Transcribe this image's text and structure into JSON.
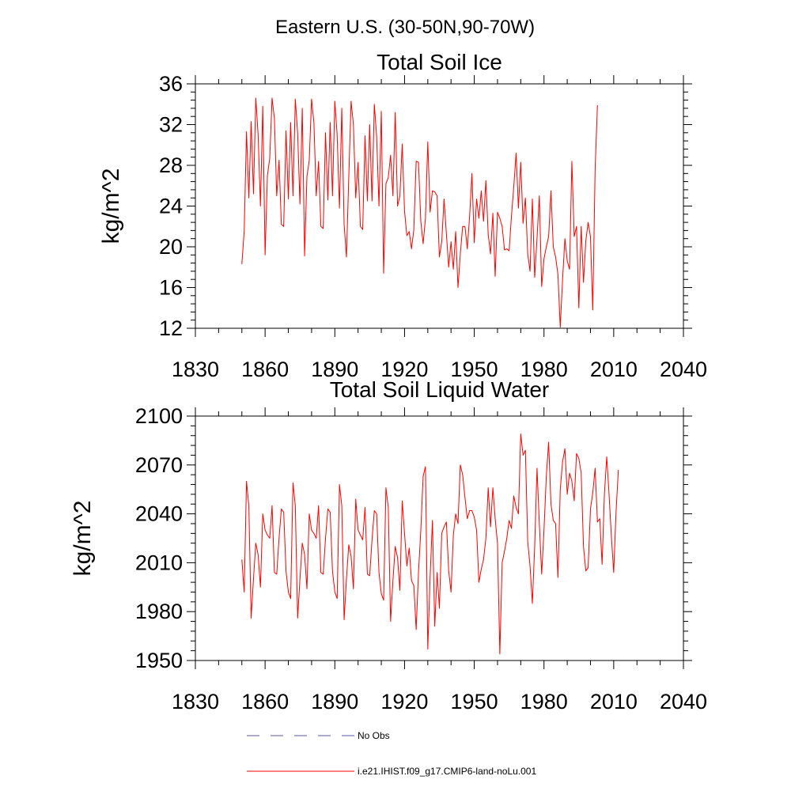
{
  "figure": {
    "main_title": "Eastern U.S. (30-50N,90-70W)"
  },
  "colors": {
    "series": "#ff0000",
    "obs": "#5a5aa0",
    "axis": "#000000"
  },
  "legend": {
    "placement": "bottom",
    "items": [
      {
        "label": "No Obs",
        "style": "dashed",
        "color": "#5a5aa0"
      },
      {
        "label": "i.e21.IHIST.f09_g17.CMIP6-land-noLu.001",
        "style": "solid",
        "color": "#ff0000"
      }
    ]
  },
  "chart_data": [
    {
      "type": "line",
      "title": "Total Soil Ice",
      "ylabel": "kg/m^2",
      "xlim": [
        1830,
        2040
      ],
      "ylim": [
        12,
        36
      ],
      "xticks": [
        "1830",
        "1860",
        "1890",
        "1920",
        "1950",
        "1980",
        "2010",
        "2040"
      ],
      "yticks": [
        "12",
        "16",
        "20",
        "24",
        "28",
        "32",
        "36"
      ],
      "series": [
        {
          "name": "i.e21.IHIST.f09_g17.CMIP6-land-noLu.001",
          "x_start": 1850,
          "values": [
            18.3,
            21.5,
            31.3,
            24.8,
            32.3,
            25.2,
            34.6,
            31.0,
            24.0,
            33.8,
            19.2,
            27.0,
            28.7,
            34.6,
            32.6,
            25.0,
            28.5,
            22.2,
            22.0,
            31.4,
            24.7,
            32.2,
            25.0,
            34.5,
            31.2,
            24.2,
            33.6,
            19.1,
            26.9,
            28.5,
            34.5,
            32.2,
            25.0,
            28.4,
            22.0,
            21.8,
            31.2,
            24.6,
            32.2,
            25.0,
            34.3,
            31.0,
            23.8,
            33.6,
            22.2,
            19.0,
            26.8,
            34.3,
            32.0,
            24.8,
            28.3,
            22.0,
            21.7,
            30.9,
            24.5,
            32.0,
            24.5,
            34.0,
            30.8,
            24.0,
            33.3,
            17.4,
            26.2,
            26.8,
            29.0,
            25.0,
            33.2,
            24.0,
            25.0,
            30.1,
            23.5,
            21.1,
            21.5,
            19.8,
            21.7,
            28.4,
            28.3,
            22.5,
            20.3,
            22.8,
            30.3,
            23.4,
            25.5,
            25.4,
            25.0,
            19.0,
            20.5,
            24.7,
            21.3,
            18.0,
            20.5,
            17.8,
            21.5,
            16.0,
            19.3,
            22.0,
            22.0,
            19.8,
            23.0,
            27.2,
            20.4,
            24.7,
            22.8,
            25.5,
            22.5,
            26.5,
            21.2,
            19.3,
            23.3,
            17.1,
            23.4,
            22.8,
            22.0,
            19.7,
            19.8,
            19.6,
            23.0,
            25.9,
            29.2,
            23.8,
            28.3,
            22.3,
            24.8,
            19.3,
            17.6,
            24.7,
            17.0,
            20.8,
            25.0,
            16.1,
            18.8,
            20.0,
            21.0,
            25.5,
            20.0,
            19.0,
            17.3,
            12.1,
            16.8,
            20.8,
            18.6,
            17.8,
            28.4,
            21.0,
            22.0,
            14.0,
            22.0,
            16.5,
            20.6,
            22.4,
            21.0,
            13.8,
            27.6,
            33.9
          ]
        }
      ]
    },
    {
      "type": "line",
      "title": "Total Soil Liquid Water",
      "ylabel": "kg/m^2",
      "xlim": [
        1830,
        2040
      ],
      "ylim": [
        1950,
        2100
      ],
      "xticks": [
        "1830",
        "1860",
        "1890",
        "1920",
        "1950",
        "1980",
        "2010",
        "2040"
      ],
      "yticks": [
        "1950",
        "1980",
        "2010",
        "2040",
        "2070",
        "2100"
      ],
      "series": [
        {
          "name": "i.e21.IHIST.f09_g17.CMIP6-land-noLu.001",
          "x_start": 1850,
          "values": [
            2012,
            1992,
            2060,
            2045,
            1976,
            2000,
            2022,
            2015,
            1995,
            2040,
            2030,
            2027,
            2025,
            2045,
            2004,
            2003,
            2025,
            2043,
            2041,
            2005,
            1992,
            1988,
            2059,
            2045,
            1976,
            2000,
            2022,
            2015,
            1994,
            2040,
            2030,
            2028,
            2025,
            2045,
            2004,
            2003,
            2025,
            2043,
            2041,
            2005,
            1992,
            1988,
            2058,
            2045,
            1975,
            2000,
            2021,
            2014,
            1994,
            2049,
            2030,
            2027,
            2024,
            2044,
            2003,
            2002,
            2024,
            2042,
            2040,
            2004,
            1991,
            1987,
            2056,
            2044,
            1974,
            1999,
            2020,
            2013,
            1993,
            2048,
            2028,
            2008,
            2019,
            1999,
            1996,
            1969,
            2004,
            2030,
            2063,
            2069,
            1957,
            2001,
            2036,
            1971,
            2004,
            1982,
            2028,
            2032,
            2035,
            2005,
            1992,
            2027,
            2040,
            2034,
            2070,
            2064,
            2050,
            2037,
            2042,
            2042,
            2038,
            2030,
            1998,
            2006,
            2012,
            2025,
            2056,
            2032,
            2056,
            2037,
            2022,
            1954,
            2010,
            2017,
            2025,
            2036,
            2031,
            2051,
            2044,
            2040,
            2089,
            2076,
            2079,
            2023,
            2008,
            1985,
            2020,
            2068,
            2034,
            2003,
            2030,
            2063,
            2084,
            2046,
            2036,
            2034,
            2001,
            2055,
            2072,
            2080,
            2052,
            2065,
            2060,
            2048,
            2077,
            2074,
            2065,
            2020,
            2005,
            2007,
            2043,
            2053,
            2068,
            2035,
            2037,
            2009,
            2052,
            2075,
            2052,
            2026,
            2004,
            2041,
            2067
          ]
        }
      ]
    }
  ]
}
